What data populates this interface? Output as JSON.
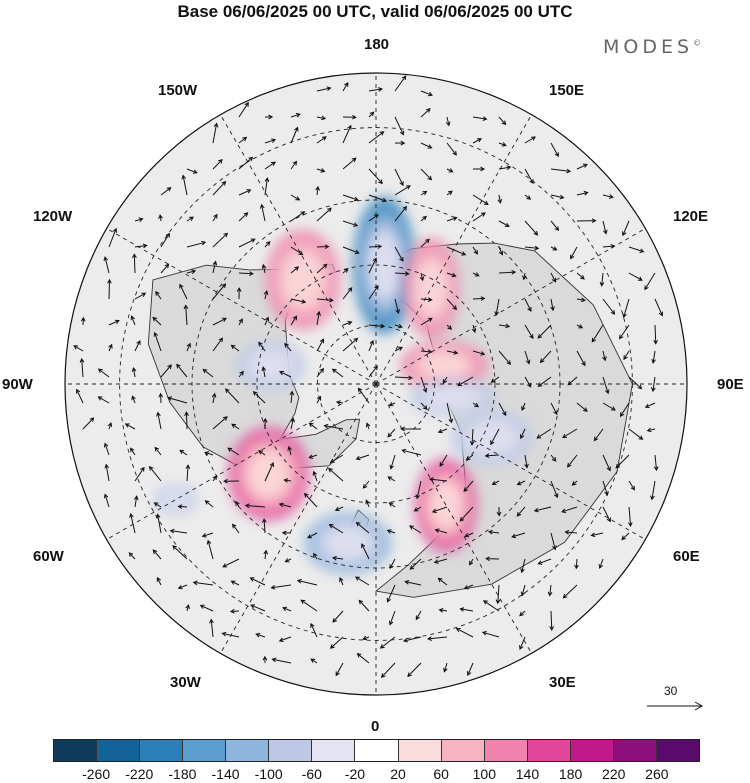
{
  "title": "Base 06/06/2025 00 UTC, valid 06/06/2025 00 UTC",
  "logo": "MODES",
  "logo_mark": "©",
  "map": {
    "projection": "north-polar-stereographic",
    "longitude_labels": {
      "top": "180",
      "bottom": "0",
      "left": "90W",
      "right": "90E",
      "upper_left_1": "150W",
      "upper_left_2": "120W",
      "lower_left_1": "60W",
      "lower_left_2": "30W",
      "upper_right_1": "150E",
      "upper_right_2": "120E",
      "lower_right_1": "60E",
      "lower_right_2": "30E"
    },
    "anomalies": [
      {
        "lon": 176,
        "lat": 60,
        "value": -200,
        "rx": 0.1,
        "ry": 0.22
      },
      {
        "lon": 215,
        "lat": 58,
        "value": 140,
        "rx": 0.12,
        "ry": 0.16
      },
      {
        "lon": 150,
        "lat": 62,
        "value": 120,
        "rx": 0.09,
        "ry": 0.16
      },
      {
        "lon": 105,
        "lat": 72,
        "value": 120,
        "rx": 0.14,
        "ry": 0.08
      },
      {
        "lon": 30,
        "lat": 55,
        "value": 160,
        "rx": 0.1,
        "ry": 0.15
      },
      {
        "lon": 310,
        "lat": 55,
        "value": 160,
        "rx": 0.13,
        "ry": 0.15
      },
      {
        "lon": 350,
        "lat": 50,
        "value": -130,
        "rx": 0.14,
        "ry": 0.1
      },
      {
        "lon": 260,
        "lat": 63,
        "value": -90,
        "rx": 0.11,
        "ry": 0.08
      },
      {
        "lon": 65,
        "lat": 58,
        "value": -100,
        "rx": 0.13,
        "ry": 0.09
      },
      {
        "lon": 80,
        "lat": 70,
        "value": -80,
        "rx": 0.14,
        "ry": 0.06
      },
      {
        "lon": 300,
        "lat": 35,
        "value": -100,
        "rx": 0.07,
        "ry": 0.05
      }
    ],
    "reference_vector": "30"
  },
  "colorbar": {
    "ticks": [
      "-260",
      "-220",
      "-180",
      "-140",
      "-100",
      "-60",
      "-20",
      "20",
      "60",
      "100",
      "140",
      "180",
      "220",
      "260"
    ],
    "colors": [
      "#0f3b5c",
      "#14629a",
      "#2c7fb8",
      "#5a9fcf",
      "#8eb5dc",
      "#bcc8e6",
      "#e3e3f1",
      "#ffffff",
      "#fbdcdc",
      "#f6b4c2",
      "#ef83ad",
      "#e2479c",
      "#c1188b",
      "#8e0e7c",
      "#5a0a6c"
    ]
  },
  "colors": {
    "land": "#dcdcdc",
    "ocean": "#ececec",
    "coast": "#333333",
    "grid": "#222222"
  }
}
